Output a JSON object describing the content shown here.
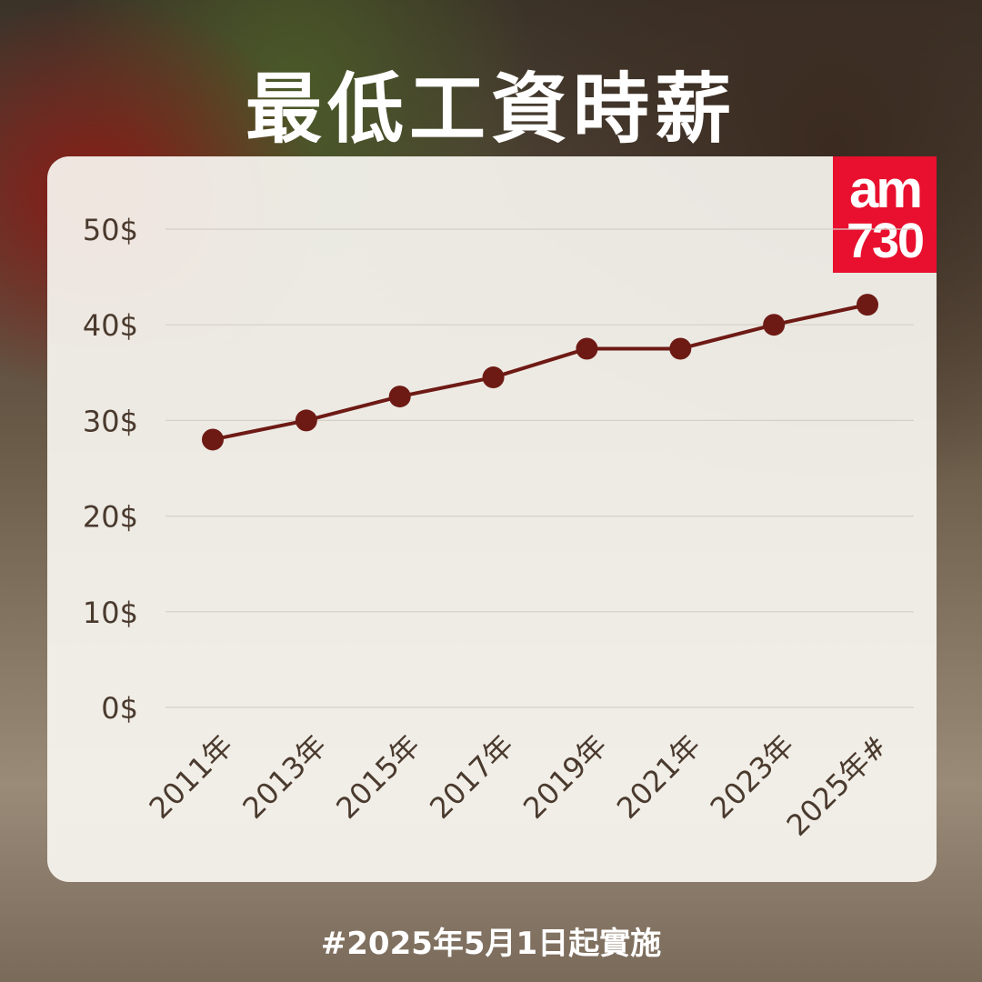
{
  "title": "最低工資時薪",
  "logo": {
    "line1": "am",
    "line2": "730"
  },
  "footer": "#2025年5月1日起實施",
  "colors": {
    "line": "#6e1a14",
    "logo_bg": "#e8102e",
    "text": "#4a3a2e"
  },
  "chart_data": {
    "type": "line",
    "categories": [
      "2011年",
      "2013年",
      "2015年",
      "2017年",
      "2019年",
      "2021年",
      "2023年",
      "2025年#"
    ],
    "values": [
      28,
      30,
      32.5,
      34.5,
      37.5,
      37.5,
      40,
      42.1
    ],
    "yticks": [
      "0$",
      "10$",
      "20$",
      "30$",
      "40$",
      "50$"
    ],
    "ylim": [
      0,
      50
    ],
    "grid": true
  }
}
